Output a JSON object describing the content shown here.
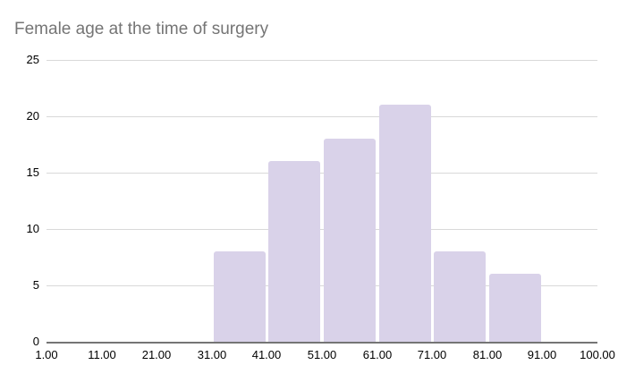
{
  "chart_data": {
    "type": "bar",
    "title": "Female age at the time of surgery",
    "xlabel": "",
    "ylabel": "",
    "x_tick_labels": [
      "1.00",
      "11.00",
      "21.00",
      "31.00",
      "41.00",
      "51.00",
      "61.00",
      "71.00",
      "81.00",
      "91.00",
      "100.00"
    ],
    "x_tick_values": [
      1,
      11,
      21,
      31,
      41,
      51,
      61,
      71,
      81,
      91,
      100
    ],
    "y_ticks": [
      0,
      5,
      10,
      15,
      20,
      25
    ],
    "ylim": [
      0,
      25
    ],
    "bin_edges": [
      1,
      11,
      21,
      31,
      41,
      51,
      61,
      71,
      81,
      91,
      100
    ],
    "bin_counts": [
      0,
      0,
      0,
      8,
      16,
      18,
      21,
      8,
      6,
      0
    ],
    "grid": true,
    "legend": "none"
  },
  "style": {
    "bar_fill": "#d9d2e9",
    "title_color": "#757575",
    "axis_label_color": "#000000",
    "gridline_color": "#d9d9d9",
    "baseline_color": "#757575"
  }
}
